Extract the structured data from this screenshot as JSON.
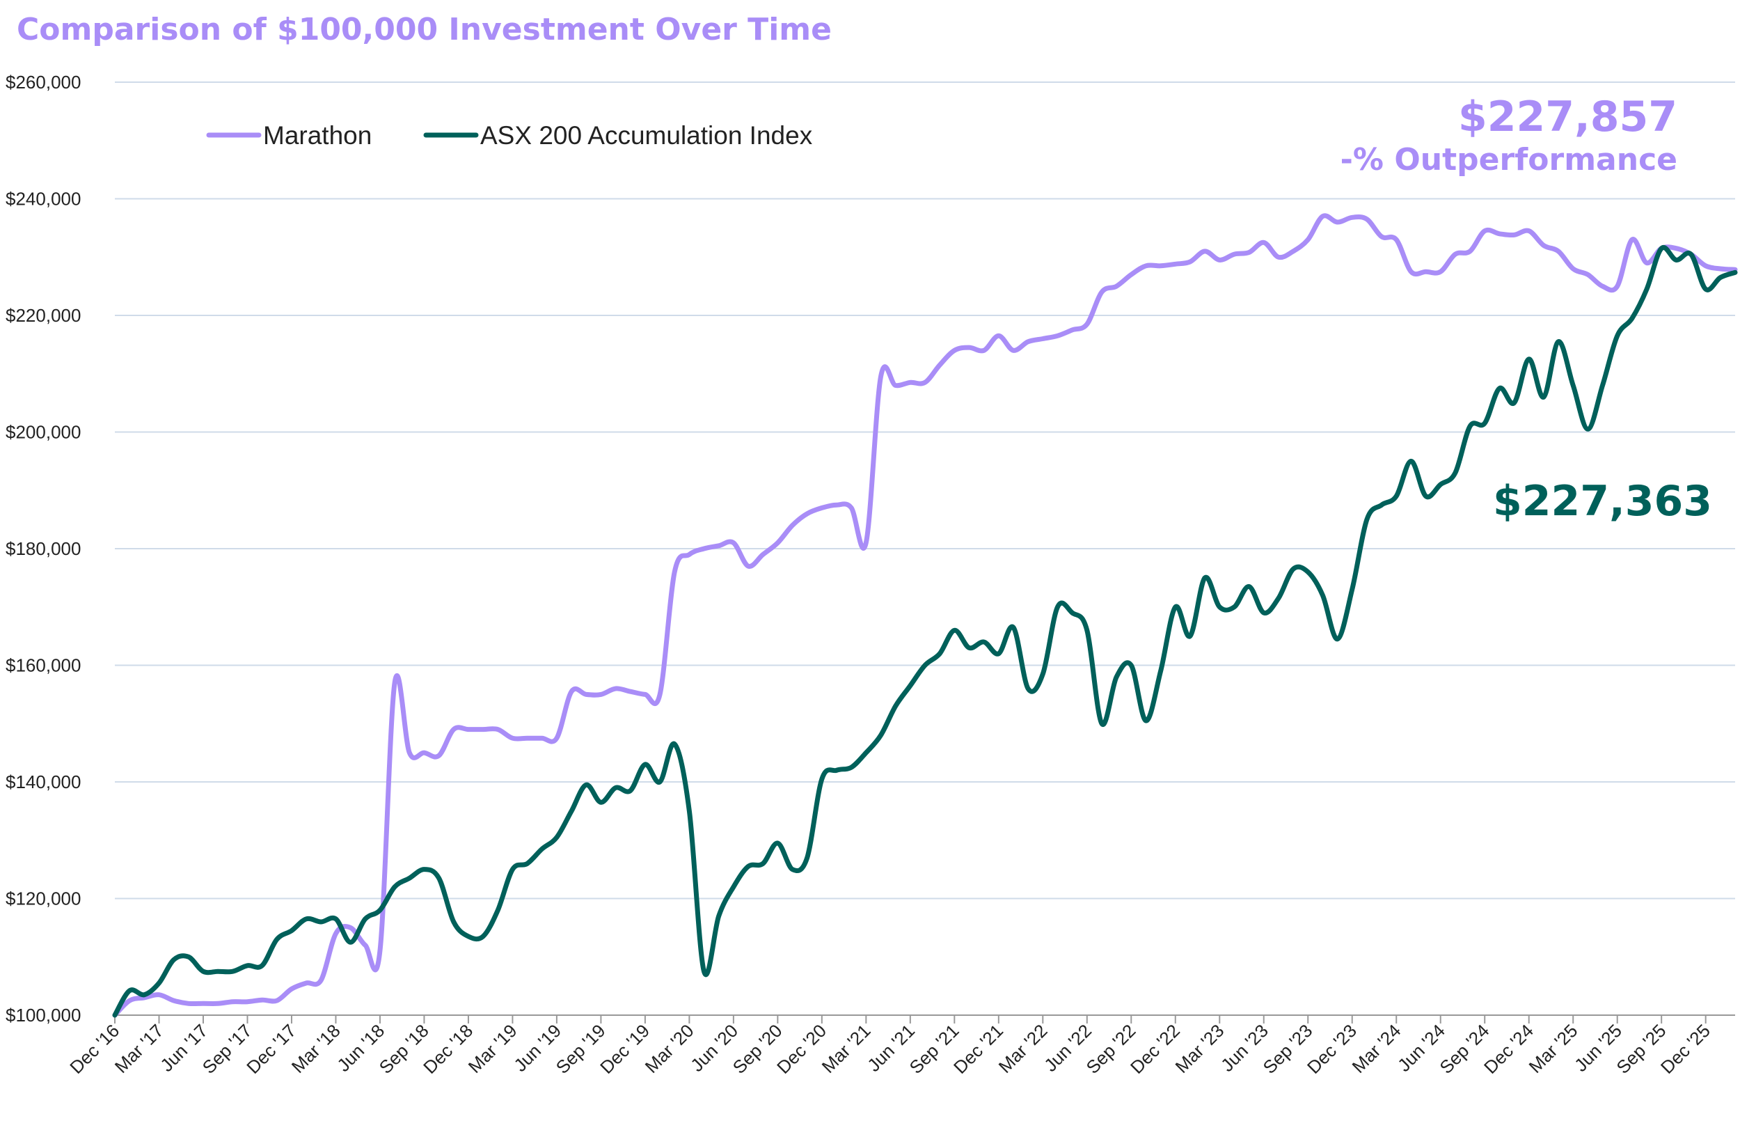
{
  "colors": {
    "marathon": "#a98df7",
    "asx": "#00605a",
    "title": "#a98df7",
    "grid": "#cfdbe9",
    "axis": "#999999"
  },
  "chart_data": {
    "type": "line",
    "title": "Comparison of $100,000 Investment Over Time",
    "xlabel": "",
    "ylabel": "",
    "ylim": [
      100000,
      260000
    ],
    "grid": true,
    "legend_position": "top-left",
    "y_ticks": [
      "$100,000",
      "$120,000",
      "$140,000",
      "$160,000",
      "$180,000",
      "$200,000",
      "$220,000",
      "$240,000",
      "$260,000"
    ],
    "x_ticks": [
      "Dec '16",
      "Mar '17",
      "Jun '17",
      "Sep '17",
      "Dec '17",
      "Mar '18",
      "Jun '18",
      "Sep '18",
      "Dec '18",
      "Mar '19",
      "Jun '19",
      "Sep '19",
      "Dec '19",
      "Mar '20",
      "Jun '20",
      "Sep '20",
      "Dec '20",
      "Mar '21",
      "Jun '21",
      "Sep '21",
      "Dec '21",
      "Mar '22",
      "Jun '22",
      "Sep '22",
      "Dec '22",
      "Mar '23",
      "Jun '23",
      "Sep '23",
      "Dec '23",
      "Mar '24",
      "Jun '24",
      "Sep '24",
      "Dec '24",
      "Mar '25",
      "Jun '25",
      "Sep '25",
      "Dec '25"
    ],
    "annotations": {
      "marathon_value": "$227,857",
      "outperformance": "-% Outperformance",
      "asx_value": "$227,363"
    },
    "series": [
      {
        "name": "Marathon",
        "values": [
          100000,
          102500,
          103000,
          103500,
          102500,
          102000,
          102000,
          102000,
          102300,
          102300,
          102600,
          102500,
          104500,
          105500,
          106000,
          114000,
          115000,
          112000,
          111000,
          157000,
          145000,
          145000,
          144500,
          149000,
          149000,
          149000,
          149000,
          147500,
          147500,
          147500,
          147500,
          155500,
          155000,
          155000,
          156000,
          155500,
          155000,
          155000,
          176000,
          179000,
          180000,
          180500,
          181000,
          177000,
          179000,
          181000,
          184000,
          186000,
          187000,
          187500,
          187000,
          181000,
          209500,
          208000,
          208500,
          208500,
          211500,
          214000,
          214500,
          214000,
          216500,
          214000,
          215500,
          216000,
          216500,
          217500,
          218500,
          224000,
          225000,
          227000,
          228500,
          228500,
          228800,
          229200,
          231000,
          229500,
          230500,
          230800,
          232500,
          230000,
          231000,
          233000,
          237000,
          236000,
          236800,
          236500,
          233500,
          233000,
          227500,
          227500,
          227500,
          230500,
          231000,
          234500,
          234000,
          233800,
          234500,
          232000,
          231000,
          228000,
          227000,
          225000,
          225000,
          233000,
          229000,
          231500,
          231500,
          230500,
          228500,
          228000,
          227857
        ]
      },
      {
        "name": "ASX 200 Accumulation Index",
        "values": [
          100000,
          104200,
          103500,
          105500,
          109500,
          110000,
          107500,
          107500,
          107500,
          108500,
          108500,
          113000,
          114500,
          116500,
          116000,
          116500,
          112500,
          116500,
          118000,
          122000,
          123500,
          125000,
          123500,
          116000,
          113500,
          113500,
          118000,
          125000,
          126000,
          128500,
          130500,
          135000,
          139500,
          136500,
          139000,
          138500,
          143000,
          140000,
          146500,
          135000,
          107500,
          117000,
          122000,
          125500,
          126000,
          129500,
          125000,
          127000,
          140500,
          142000,
          142500,
          145000,
          148000,
          153000,
          156500,
          160000,
          162000,
          166000,
          163000,
          164000,
          162000,
          166500,
          156000,
          158500,
          170000,
          169000,
          166000,
          150000,
          158000,
          160000,
          150500,
          159000,
          170000,
          165000,
          175000,
          170000,
          170000,
          173500,
          169000,
          171500,
          176500,
          176000,
          172000,
          164500,
          173000,
          185000,
          187500,
          189000,
          195000,
          189000,
          191000,
          193000,
          201000,
          201500,
          207500,
          205000,
          212500,
          206000,
          215500,
          208000,
          200500,
          208000,
          216500,
          219500,
          224500,
          231500,
          229500,
          230500,
          224500,
          226500,
          227363
        ]
      }
    ]
  }
}
